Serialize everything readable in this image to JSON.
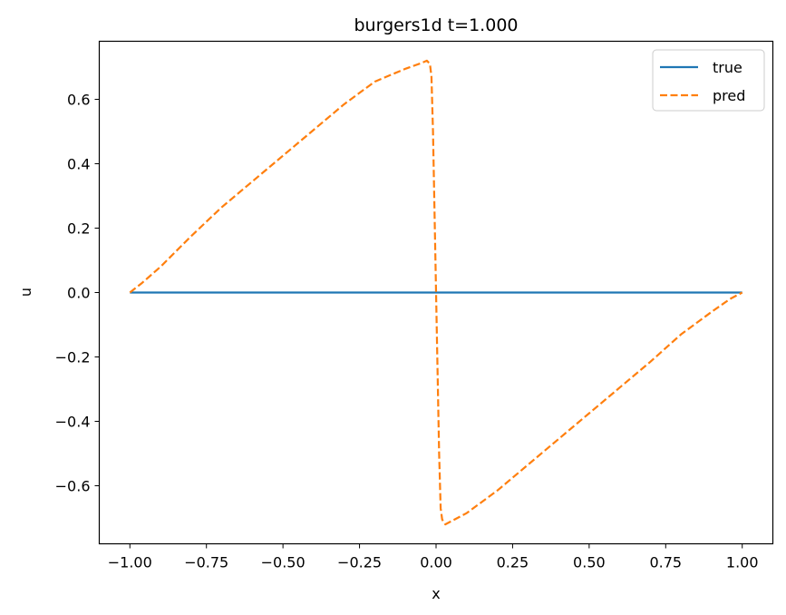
{
  "chart_data": {
    "type": "line",
    "title": "burgers1d  t=1.000",
    "xlabel": "x",
    "ylabel": "u",
    "xlim": [
      -1.1,
      1.1
    ],
    "ylim": [
      -0.7803,
      0.7803
    ],
    "xticks": [
      -1.0,
      -0.75,
      -0.5,
      -0.25,
      0.0,
      0.25,
      0.5,
      0.75,
      1.0
    ],
    "xtick_labels": [
      "−1.00",
      "−0.75",
      "−0.50",
      "−0.25",
      "0.00",
      "0.25",
      "0.50",
      "0.75",
      "1.00"
    ],
    "yticks": [
      -0.6,
      -0.4,
      -0.2,
      0.0,
      0.2,
      0.4,
      0.6
    ],
    "ytick_labels": [
      "−0.6",
      "−0.4",
      "−0.2",
      "0.0",
      "0.2",
      "0.4",
      "0.6"
    ],
    "grid": false,
    "legend_position": "top-right",
    "series": [
      {
        "name": "true",
        "color": "#1f77b4",
        "linestyle": "solid",
        "x": [
          -1.0,
          1.0
        ],
        "y": [
          0.0,
          0.0
        ]
      },
      {
        "name": "pred",
        "color": "#ff7f0e",
        "linestyle": "dashed",
        "x": [
          -1.0,
          -0.96,
          -0.9,
          -0.8,
          -0.7,
          -0.6,
          -0.5,
          -0.4,
          -0.3,
          -0.2,
          -0.1,
          -0.05,
          -0.03,
          -0.02,
          -0.015,
          -0.01,
          -0.005,
          0.0,
          0.005,
          0.01,
          0.015,
          0.02,
          0.03,
          0.05,
          0.1,
          0.2,
          0.3,
          0.4,
          0.5,
          0.6,
          0.7,
          0.8,
          0.9,
          0.96,
          1.0
        ],
        "y": [
          0.0,
          0.03,
          0.08,
          0.175,
          0.265,
          0.345,
          0.425,
          0.505,
          0.585,
          0.655,
          0.695,
          0.712,
          0.72,
          0.71,
          0.67,
          0.5,
          0.25,
          0.0,
          -0.25,
          -0.5,
          -0.67,
          -0.705,
          -0.72,
          -0.71,
          -0.685,
          -0.615,
          -0.535,
          -0.455,
          -0.375,
          -0.295,
          -0.215,
          -0.13,
          -0.06,
          -0.02,
          0.0
        ]
      }
    ]
  }
}
